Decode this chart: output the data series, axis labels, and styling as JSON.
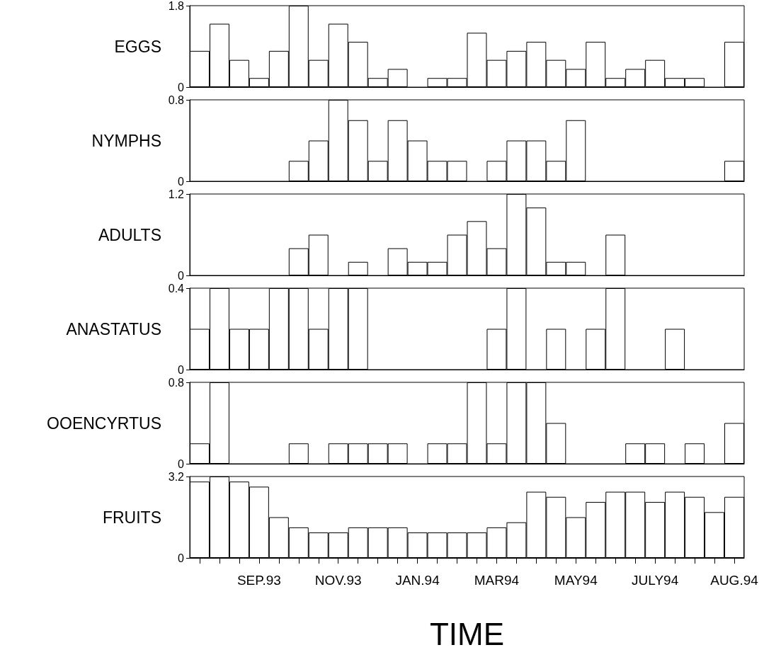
{
  "chart_data": [
    {
      "type": "bar",
      "ylabel": "EGGS",
      "tick_labels": "y",
      "categories": [
        null,
        null,
        null,
        null,
        null,
        null,
        null,
        null,
        null,
        null,
        null,
        null,
        null,
        null,
        null,
        null,
        null,
        null,
        null,
        null,
        null,
        null,
        null,
        null,
        null,
        null,
        null,
        null
      ],
      "color": "#ffffff",
      "values": [
        0.8,
        1.4,
        0.6,
        0.2,
        0.8,
        1.8,
        0.6,
        1.4,
        1.0,
        0.2,
        0.4,
        0,
        0.2,
        0.2,
        1.2,
        0.6,
        0.8,
        1.0,
        0.6,
        0.4,
        1.0,
        0.2,
        0.4,
        0.6,
        0.2,
        0.2,
        0,
        1.0
      ],
      "ylim": [
        0,
        1.8
      ],
      "yticks": [
        0,
        1.8
      ]
    },
    {
      "type": "bar",
      "ylabel": "NYMPHS",
      "tick_labels": "y",
      "categories": [
        null,
        null,
        null,
        null,
        null,
        null,
        null,
        null,
        null,
        null,
        null,
        null,
        null,
        null,
        null,
        null,
        null,
        null,
        null,
        null,
        null,
        null,
        null,
        null,
        null,
        null,
        null,
        null
      ],
      "color": "#ffffff",
      "values": [
        0,
        0,
        0,
        0,
        0,
        0.2,
        0.4,
        0.8,
        0.6,
        0.2,
        0.6,
        0.4,
        0.2,
        0.2,
        0,
        0.2,
        0.4,
        0.4,
        0.2,
        0.6,
        0,
        0,
        0,
        0,
        0,
        0,
        0,
        0.2
      ],
      "ylim": [
        0,
        0.8
      ],
      "yticks": [
        0,
        0.8
      ]
    },
    {
      "type": "bar",
      "ylabel": "ADULTS",
      "tick_labels": "y",
      "categories": [
        null,
        null,
        null,
        null,
        null,
        null,
        null,
        null,
        null,
        null,
        null,
        null,
        null,
        null,
        null,
        null,
        null,
        null,
        null,
        null,
        null,
        null,
        null,
        null,
        null,
        null,
        null,
        null
      ],
      "color": "#ffffff",
      "values": [
        0,
        0,
        0,
        0,
        0,
        0.4,
        0.6,
        0,
        0.2,
        0,
        0.4,
        0.2,
        0.2,
        0.6,
        0.8,
        0.4,
        1.2,
        1.0,
        0.2,
        0.2,
        0,
        0.6,
        0,
        0,
        0,
        0,
        0,
        0
      ],
      "ylim": [
        0,
        1.2
      ],
      "yticks": [
        0,
        1.2
      ]
    },
    {
      "type": "bar",
      "ylabel": "ANASTATUS",
      "tick_labels": "y",
      "categories": [
        null,
        null,
        null,
        null,
        null,
        null,
        null,
        null,
        null,
        null,
        null,
        null,
        null,
        null,
        null,
        null,
        null,
        null,
        null,
        null,
        null,
        null,
        null,
        null,
        null,
        null,
        null,
        null
      ],
      "color": "#ffffff",
      "values": [
        0.2,
        0.4,
        0.2,
        0.2,
        0.4,
        0.4,
        0.2,
        0.4,
        0.4,
        0,
        0,
        0,
        0,
        0,
        0,
        0.2,
        0.4,
        0,
        0.2,
        0,
        0.2,
        0.4,
        0,
        0,
        0.2,
        0,
        0,
        0
      ],
      "ylim": [
        0,
        0.4
      ],
      "yticks": [
        0,
        0.4
      ]
    },
    {
      "type": "bar",
      "ylabel": "OOENCYRTUS",
      "tick_labels": "y",
      "categories": [
        null,
        null,
        null,
        null,
        null,
        null,
        null,
        null,
        null,
        null,
        null,
        null,
        null,
        null,
        null,
        null,
        null,
        null,
        null,
        null,
        null,
        null,
        null,
        null,
        null,
        null,
        null,
        null
      ],
      "color": "#ffffff",
      "values": [
        0.2,
        0.8,
        0,
        0,
        0,
        0.2,
        0,
        0.2,
        0.2,
        0.2,
        0.2,
        0,
        0.2,
        0.2,
        0.8,
        0.2,
        0.8,
        0.8,
        0.4,
        0,
        0,
        0,
        0.2,
        0.2,
        0,
        0.2,
        0,
        0.4
      ],
      "ylim": [
        0,
        0.8
      ],
      "yticks": [
        0,
        0.8
      ]
    },
    {
      "type": "bar",
      "ylabel": "FRUITS",
      "xlabel": "TIME",
      "categories": [
        null,
        null,
        null,
        "SEP.93",
        null,
        null,
        null,
        "NOV.93",
        null,
        null,
        null,
        "JAN.94",
        null,
        null,
        null,
        "MAR94",
        null,
        null,
        null,
        "MAY94",
        null,
        null,
        null,
        "JULY94",
        null,
        null,
        null,
        "AUG.94"
      ],
      "color": "#ffffff",
      "values": [
        3.0,
        3.2,
        3.0,
        2.8,
        1.6,
        1.2,
        1.0,
        1.0,
        1.2,
        1.2,
        1.2,
        1.0,
        1.0,
        1.0,
        1.0,
        1.2,
        1.4,
        2.6,
        2.4,
        1.6,
        2.2,
        2.6,
        2.6,
        2.2,
        2.6,
        2.4,
        1.8,
        2.4
      ],
      "ylim": [
        0,
        3.2
      ],
      "yticks": [
        0,
        3.2
      ]
    }
  ]
}
